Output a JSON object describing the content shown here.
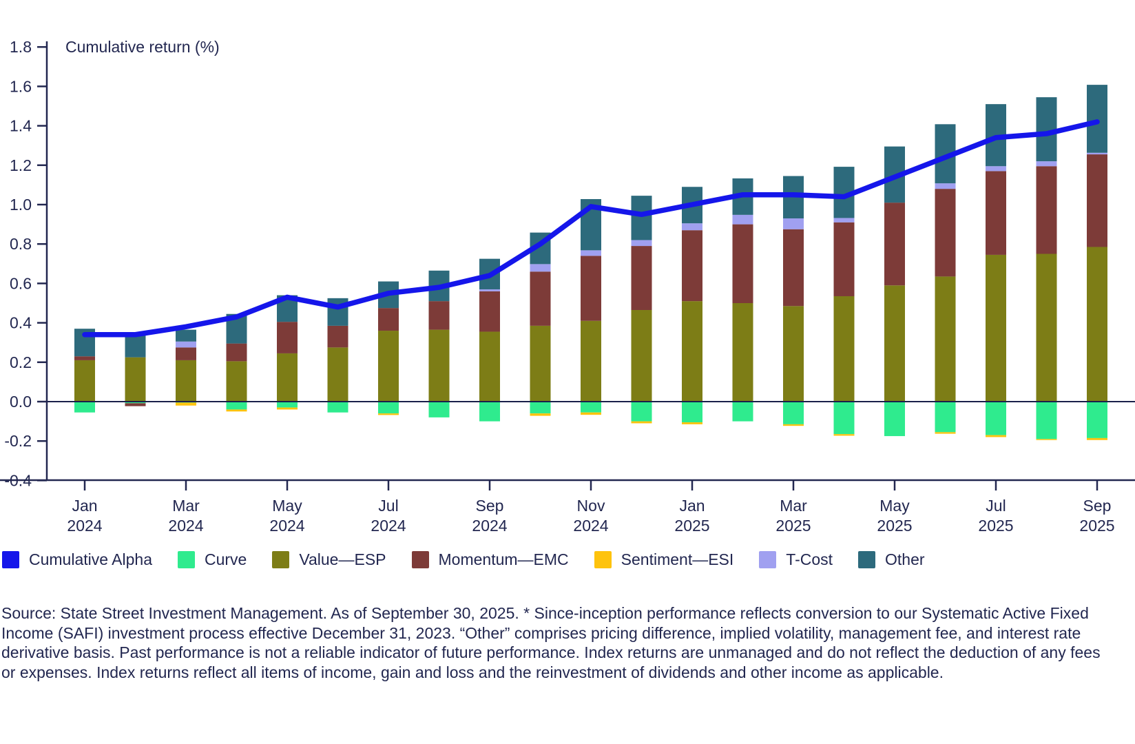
{
  "chart_data": {
    "type": "bar",
    "subtype": "stacked-bar-with-line",
    "title": "Cumulative return (%)",
    "ylabel": "Cumulative return (%)",
    "xlabel": "",
    "ylim": [
      -0.4,
      1.8
    ],
    "y_tick_step": 0.2,
    "grid": false,
    "legend_position": "bottom",
    "months": [
      "Jan 2024",
      "Feb 2024",
      "Mar 2024",
      "Apr 2024",
      "May 2024",
      "Jun 2024",
      "Jul 2024",
      "Aug 2024",
      "Sep 2024",
      "Oct 2024",
      "Nov 2024",
      "Dec 2024",
      "Jan 2025",
      "Feb 2025",
      "Mar 2025",
      "Apr 2025",
      "May 2025",
      "Jun 2025",
      "Jul 2025",
      "Aug 2025",
      "Sep 2025"
    ],
    "x_tick_indices": [
      0,
      2,
      4,
      6,
      8,
      10,
      12,
      14,
      16,
      18,
      20
    ],
    "x_tick_labels": [
      {
        "month": "Jan",
        "year": "2024"
      },
      {
        "month": "Mar",
        "year": "2024"
      },
      {
        "month": "May",
        "year": "2024"
      },
      {
        "month": "Jul",
        "year": "2024"
      },
      {
        "month": "Sep",
        "year": "2024"
      },
      {
        "month": "Nov",
        "year": "2024"
      },
      {
        "month": "Jan",
        "year": "2025"
      },
      {
        "month": "Mar",
        "year": "2025"
      },
      {
        "month": "May",
        "year": "2025"
      },
      {
        "month": "Jul",
        "year": "2025"
      },
      {
        "month": "Sep",
        "year": "2025"
      }
    ],
    "line_series": {
      "key": "cumulative_alpha",
      "label": "Cumulative Alpha",
      "color": "#1516ea",
      "values": [
        0.34,
        0.34,
        0.38,
        0.43,
        0.53,
        0.48,
        0.55,
        0.58,
        0.64,
        0.8,
        0.99,
        0.95,
        1.0,
        1.05,
        1.05,
        1.04,
        1.14,
        1.24,
        1.34,
        1.36,
        1.42
      ]
    },
    "bar_series": [
      {
        "key": "curve",
        "label": "Curve",
        "color": "#2feb8e",
        "values": [
          -0.055,
          -0.008,
          -0.005,
          -0.04,
          -0.03,
          -0.055,
          -0.06,
          -0.08,
          -0.1,
          -0.06,
          -0.055,
          -0.1,
          -0.105,
          -0.1,
          -0.115,
          -0.165,
          -0.175,
          -0.155,
          -0.17,
          -0.19,
          -0.185
        ]
      },
      {
        "key": "value",
        "label": "Value—ESP",
        "color": "#7d7d16",
        "values": [
          0.21,
          0.225,
          0.21,
          0.205,
          0.245,
          0.275,
          0.36,
          0.365,
          0.355,
          0.385,
          0.41,
          0.465,
          0.51,
          0.5,
          0.485,
          0.535,
          0.59,
          0.635,
          0.745,
          0.75,
          0.785
        ]
      },
      {
        "key": "momentum",
        "label": "Momentum—EMC",
        "color": "#7d3b38",
        "values": [
          0.02,
          -0.015,
          0.065,
          0.09,
          0.16,
          0.11,
          0.115,
          0.145,
          0.205,
          0.275,
          0.33,
          0.325,
          0.36,
          0.4,
          0.39,
          0.375,
          0.42,
          0.445,
          0.425,
          0.445,
          0.47
        ]
      },
      {
        "key": "sentiment",
        "label": "Sentiment—ESI",
        "color": "#fec30d",
        "values": [
          0,
          0,
          -0.015,
          -0.01,
          -0.01,
          0,
          -0.008,
          0,
          0,
          -0.012,
          -0.012,
          -0.01,
          -0.01,
          0,
          -0.008,
          -0.008,
          0,
          -0.008,
          -0.01,
          -0.005,
          -0.01
        ]
      },
      {
        "key": "tcost",
        "label": "T-Cost",
        "color": "#a0a0f0",
        "values": [
          0,
          0,
          0.03,
          0,
          0,
          0,
          0,
          0,
          0.01,
          0.038,
          0.028,
          0.03,
          0.035,
          0.048,
          0.055,
          0.022,
          0,
          0.028,
          0.025,
          0.025,
          0.008
        ]
      },
      {
        "key": "other",
        "label": "Other",
        "color": "#2d6a7c",
        "values": [
          0.14,
          0.12,
          0.06,
          0.15,
          0.135,
          0.14,
          0.135,
          0.155,
          0.155,
          0.16,
          0.26,
          0.225,
          0.185,
          0.185,
          0.215,
          0.26,
          0.285,
          0.3,
          0.315,
          0.325,
          0.345
        ]
      }
    ],
    "axis_color": "#222750"
  },
  "legend": {
    "order": [
      "cumulative_alpha",
      "curve",
      "value",
      "momentum",
      "sentiment",
      "tcost",
      "other"
    ]
  },
  "footnote": {
    "text": "Source: State Street Investment Management. As of September 30, 2025. * Since-inception performance reflects conversion to our Systematic Active Fixed Income (SAFI) investment process effective December 31, 2023. “Other” comprises pricing difference, implied volatility, management fee, and interest rate derivative basis. Past performance is not a reliable indicator of future performance. Index returns are unmanaged and do not reflect the deduction of any fees or expenses. Index returns reflect all items of income, gain and loss and the reinvestment of dividends and other income as applicable."
  }
}
